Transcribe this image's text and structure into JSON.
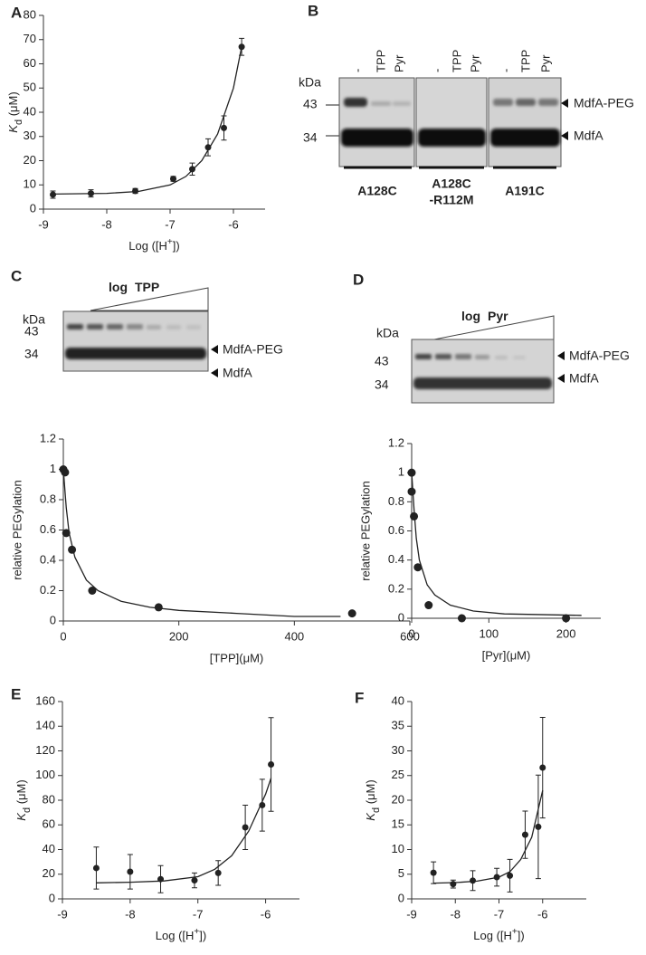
{
  "chart_data": [
    {
      "type": "scatter",
      "panel": "A",
      "xlabel": {
        "text": "Log ([H",
        "sup": "+",
        "end": "])"
      },
      "ylabel": {
        "main": "K",
        "sub": "d",
        "unit": " (μM)"
      },
      "xlim": [
        -9,
        -5.5
      ],
      "xticks": [
        -9,
        -8,
        -7,
        -6
      ],
      "ylim": [
        0,
        80
      ],
      "yticks": [
        0,
        10,
        20,
        30,
        40,
        50,
        60,
        70,
        80
      ],
      "points": {
        "x": [
          -8.85,
          -8.25,
          -7.55,
          -6.95,
          -6.65,
          -6.4,
          -6.15,
          -5.87
        ],
        "y": [
          6,
          6.5,
          7.5,
          12.5,
          16.5,
          25.5,
          33.5,
          67
        ],
        "err": [
          1.5,
          1.5,
          1,
          1,
          2.5,
          3.5,
          5,
          3.5
        ]
      },
      "fit": {
        "x": [
          -8.85,
          -8,
          -7.5,
          -7,
          -6.75,
          -6.5,
          -6.25,
          -6,
          -5.87
        ],
        "y": [
          6.2,
          6.5,
          7.3,
          10,
          13.5,
          20,
          31,
          50,
          67
        ]
      },
      "color": "#222"
    },
    {
      "type": "scatter",
      "xlabel": "[TPP](μM)",
      "ylabel": "relative PEGylation",
      "xlim": [
        0,
        600
      ],
      "xticks": [
        0,
        200,
        400,
        600
      ],
      "ylim": [
        0,
        1.2
      ],
      "yticks": [
        0,
        0.2,
        0.4,
        0.6,
        0.8,
        1,
        1.2
      ],
      "points": {
        "x": [
          0,
          3,
          5,
          15,
          50,
          165,
          500
        ],
        "y": [
          1,
          0.98,
          0.58,
          0.47,
          0.2,
          0.09,
          0.05
        ]
      },
      "fit": {
        "x": [
          0,
          5,
          10,
          20,
          40,
          60,
          100,
          150,
          200,
          300,
          400,
          480
        ],
        "y": [
          1,
          0.75,
          0.58,
          0.42,
          0.27,
          0.2,
          0.13,
          0.09,
          0.07,
          0.05,
          0.03,
          0.03
        ]
      },
      "color": "#222"
    },
    {
      "type": "scatter",
      "xlabel": "[Pyr](μM)",
      "ylabel": "relative PEGylation",
      "xlim": [
        0,
        245
      ],
      "xticks": [
        0,
        100,
        200
      ],
      "ylim": [
        0,
        1.2
      ],
      "yticks": [
        0,
        0.2,
        0.4,
        0.6,
        0.8,
        1,
        1.2
      ],
      "points": {
        "x": [
          0,
          0,
          3,
          8,
          22,
          65,
          200
        ],
        "y": [
          1,
          0.87,
          0.7,
          0.35,
          0.09,
          0,
          0
        ]
      },
      "fit": {
        "x": [
          0,
          3,
          6,
          10,
          20,
          30,
          50,
          80,
          120,
          220
        ],
        "y": [
          1,
          0.75,
          0.55,
          0.4,
          0.23,
          0.16,
          0.09,
          0.05,
          0.03,
          0.02
        ]
      },
      "color": "#222"
    },
    {
      "type": "scatter",
      "panel": "E",
      "xlabel": {
        "text": "Log ([H",
        "sup": "+",
        "end": "])"
      },
      "ylabel": {
        "main": "K",
        "sub": "d",
        "unit": " (μM)"
      },
      "xlim": [
        -9,
        -5.5
      ],
      "xticks": [
        -9,
        -8,
        -7,
        -6
      ],
      "ylim": [
        0,
        160
      ],
      "yticks": [
        0,
        20,
        40,
        60,
        80,
        100,
        120,
        140,
        160
      ],
      "points": {
        "x": [
          -8.5,
          -8,
          -7.55,
          -7.05,
          -6.7,
          -6.3,
          -6.05,
          -5.92
        ],
        "y": [
          25,
          22,
          16,
          15,
          21,
          58,
          76,
          109
        ],
        "err": [
          17,
          14,
          11,
          6,
          10,
          18,
          21,
          38
        ]
      },
      "fit": {
        "x": [
          -8.5,
          -8,
          -7.5,
          -7,
          -6.75,
          -6.5,
          -6.25,
          -6,
          -5.92
        ],
        "y": [
          13,
          13.5,
          14.5,
          18,
          24,
          35,
          55,
          85,
          98
        ]
      },
      "color": "#222"
    },
    {
      "type": "scatter",
      "panel": "F",
      "xlabel": {
        "text": "Log ([H",
        "sup": "+",
        "end": "])"
      },
      "ylabel": {
        "main": "K",
        "sub": "d",
        "unit": " (μM)"
      },
      "xlim": [
        -9,
        -5
      ],
      "xticks": [
        -9,
        -8,
        -7,
        -6
      ],
      "ylim": [
        0,
        40
      ],
      "yticks": [
        0,
        5,
        10,
        15,
        20,
        25,
        30,
        35,
        40
      ],
      "points": {
        "x": [
          -8.5,
          -8.05,
          -7.6,
          -7.05,
          -6.75,
          -6.4,
          -6.1,
          -6
        ],
        "y": [
          5.3,
          3,
          3.7,
          4.4,
          4.7,
          13,
          14.6,
          26.6
        ],
        "err": [
          2.2,
          0.8,
          2,
          1.8,
          3.3,
          4.8,
          10.5,
          10.2
        ]
      },
      "fit": {
        "x": [
          -8.5,
          -8,
          -7.5,
          -7,
          -6.75,
          -6.5,
          -6.25,
          -6
        ],
        "y": [
          3.2,
          3.3,
          3.6,
          4.4,
          5.5,
          8,
          12.5,
          22
        ]
      },
      "color": "#222"
    }
  ],
  "blots": [
    {
      "panel": "B",
      "kda": "kDa",
      "markers": [
        "43",
        "34"
      ],
      "lanes": [
        "-",
        "TPP",
        "Pyr",
        "-",
        "TPP",
        "Pyr",
        "-",
        "TPP",
        "Pyr"
      ],
      "arrows": [
        "MdfA-PEG",
        "MdfA"
      ],
      "groups": [
        [
          "A128C"
        ],
        [
          "A128C",
          "-R112M"
        ],
        [
          "A191C"
        ]
      ]
    },
    {
      "panel": "C",
      "kda": "kDa",
      "markers": [
        "43",
        "34"
      ],
      "gradient": [
        "log",
        "TPP"
      ],
      "arrows": [
        "MdfA-PEG",
        "MdfA"
      ]
    },
    {
      "panel": "D",
      "kda": "kDa",
      "markers": [
        "43",
        "34"
      ],
      "gradient": [
        "log",
        "Pyr"
      ],
      "arrows": [
        "MdfA-PEG",
        "MdfA"
      ]
    }
  ]
}
